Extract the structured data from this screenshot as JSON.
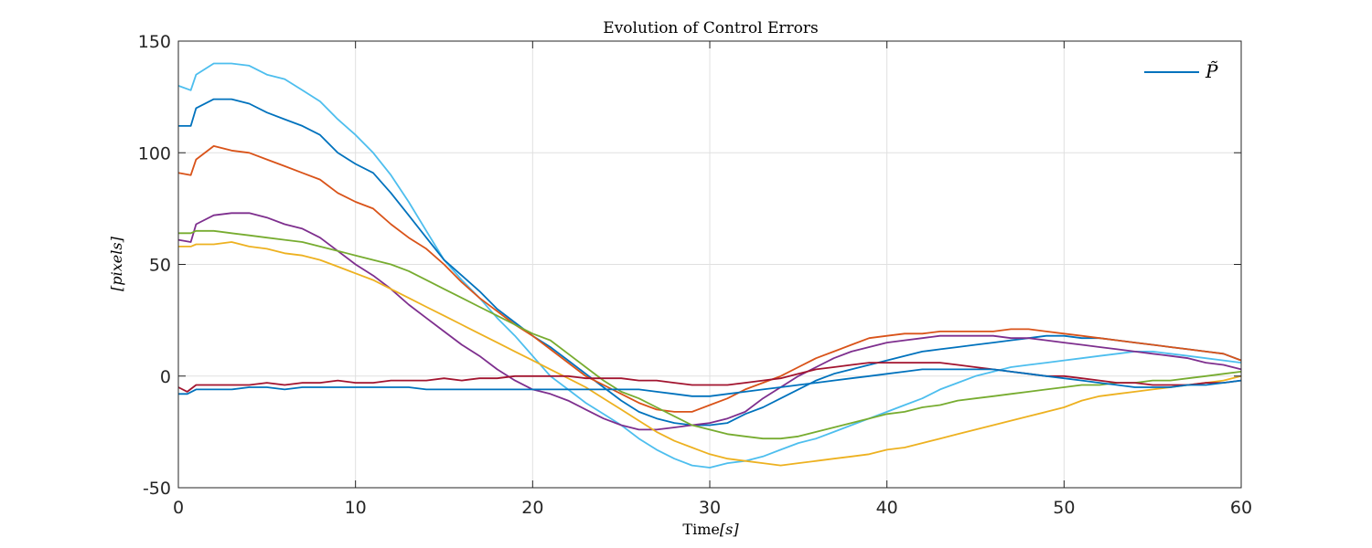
{
  "chart_data": {
    "type": "line",
    "title": "Evolution of Control Errors",
    "xlabel": "Time[s]",
    "xlabel_main": "Time",
    "xlabel_unit": "[s]",
    "ylabel": "[pixels]",
    "xlim": [
      0,
      60
    ],
    "ylim": [
      -50,
      150
    ],
    "xticks": [
      0,
      10,
      20,
      30,
      40,
      50,
      60
    ],
    "yticks": [
      -50,
      0,
      50,
      100,
      150
    ],
    "grid": true,
    "legend": {
      "position": "top-right",
      "entries": [
        "P̃"
      ]
    },
    "colors": [
      "#0072BD",
      "#D95319",
      "#EDB120",
      "#7E2F8E",
      "#77AC30",
      "#4DBEEE",
      "#A2142F"
    ],
    "series": [
      {
        "color": "#4DBEEE",
        "x": [
          0,
          0.7,
          1,
          2,
          3,
          4,
          5,
          6,
          7,
          8,
          9,
          10,
          11,
          12,
          13,
          14,
          15,
          16,
          17,
          18,
          19,
          20,
          21,
          22,
          23,
          24,
          25,
          26,
          27,
          28,
          29,
          30,
          31,
          32,
          33,
          34,
          35,
          36,
          37,
          38,
          39,
          40,
          41,
          42,
          43,
          44,
          45,
          46,
          47,
          48,
          49,
          50,
          51,
          52,
          53,
          54,
          55,
          56,
          57,
          58,
          59,
          60
        ],
        "y": [
          130,
          128,
          135,
          140,
          140,
          139,
          135,
          133,
          128,
          123,
          115,
          108,
          100,
          90,
          78,
          65,
          52,
          43,
          35,
          26,
          18,
          9,
          0,
          -6,
          -12,
          -17,
          -22,
          -28,
          -33,
          -37,
          -40,
          -41,
          -39,
          -38,
          -36,
          -33,
          -30,
          -28,
          -25,
          -22,
          -19,
          -16,
          -13,
          -10,
          -6,
          -3,
          0,
          2,
          4,
          5,
          6,
          7,
          8,
          9,
          10,
          11,
          11,
          10,
          9,
          8,
          7,
          6
        ]
      },
      {
        "color": "#0072BD",
        "x": [
          0,
          0.7,
          1,
          2,
          3,
          4,
          5,
          6,
          7,
          8,
          9,
          10,
          11,
          12,
          13,
          14,
          15,
          16,
          17,
          18,
          19,
          20,
          21,
          22,
          23,
          24,
          25,
          26,
          27,
          28,
          29,
          30,
          31,
          32,
          33,
          34,
          35,
          36,
          37,
          38,
          39,
          40,
          41,
          42,
          43,
          44,
          45,
          46,
          47,
          48,
          49,
          50,
          51,
          52,
          53,
          54,
          55,
          56,
          57,
          58,
          59,
          60
        ],
        "y": [
          112,
          112,
          120,
          124,
          124,
          122,
          118,
          115,
          112,
          108,
          100,
          95,
          91,
          82,
          72,
          62,
          52,
          45,
          38,
          30,
          24,
          18,
          13,
          7,
          1,
          -5,
          -11,
          -16,
          -19,
          -21,
          -22,
          -22,
          -21,
          -17,
          -14,
          -10,
          -6,
          -2,
          1,
          3,
          5,
          7,
          9,
          11,
          12,
          13,
          14,
          15,
          16,
          17,
          18,
          18,
          17,
          17,
          16,
          15,
          14,
          13,
          12,
          11,
          10,
          7
        ]
      },
      {
        "color": "#D95319",
        "x": [
          0,
          0.7,
          1,
          2,
          3,
          4,
          5,
          6,
          7,
          8,
          9,
          10,
          11,
          12,
          13,
          14,
          15,
          16,
          17,
          18,
          19,
          20,
          21,
          22,
          23,
          24,
          25,
          26,
          27,
          28,
          29,
          30,
          31,
          32,
          33,
          34,
          35,
          36,
          37,
          38,
          39,
          40,
          41,
          42,
          43,
          44,
          45,
          46,
          47,
          48,
          49,
          50,
          51,
          52,
          53,
          54,
          55,
          56,
          57,
          58,
          59,
          60
        ],
        "y": [
          91,
          90,
          97,
          103,
          101,
          100,
          97,
          94,
          91,
          88,
          82,
          78,
          75,
          68,
          62,
          57,
          50,
          42,
          35,
          29,
          23,
          18,
          12,
          6,
          0,
          -4,
          -8,
          -12,
          -15,
          -16,
          -16,
          -13,
          -10,
          -6,
          -3,
          0,
          4,
          8,
          11,
          14,
          17,
          18,
          19,
          19,
          20,
          20,
          20,
          20,
          21,
          21,
          20,
          19,
          18,
          17,
          16,
          15,
          14,
          13,
          12,
          11,
          10,
          7
        ]
      },
      {
        "color": "#7E2F8E",
        "x": [
          0,
          0.7,
          1,
          2,
          3,
          4,
          5,
          6,
          7,
          8,
          9,
          10,
          11,
          12,
          13,
          14,
          15,
          16,
          17,
          18,
          19,
          20,
          21,
          22,
          23,
          24,
          25,
          26,
          27,
          28,
          29,
          30,
          31,
          32,
          33,
          34,
          35,
          36,
          37,
          38,
          39,
          40,
          41,
          42,
          43,
          44,
          45,
          46,
          47,
          48,
          49,
          50,
          51,
          52,
          53,
          54,
          55,
          56,
          57,
          58,
          59,
          60
        ],
        "y": [
          61,
          60,
          68,
          72,
          73,
          73,
          71,
          68,
          66,
          62,
          56,
          50,
          45,
          39,
          32,
          26,
          20,
          14,
          9,
          3,
          -2,
          -6,
          -8,
          -11,
          -15,
          -19,
          -22,
          -24,
          -24,
          -23,
          -22,
          -21,
          -19,
          -16,
          -10,
          -5,
          0,
          4,
          8,
          11,
          13,
          15,
          16,
          17,
          18,
          18,
          18,
          18,
          17,
          17,
          16,
          15,
          14,
          13,
          12,
          11,
          10,
          9,
          8,
          6,
          5,
          3
        ]
      },
      {
        "color": "#77AC30",
        "x": [
          0,
          0.7,
          1,
          2,
          3,
          4,
          5,
          6,
          7,
          8,
          9,
          10,
          11,
          12,
          13,
          14,
          15,
          16,
          17,
          18,
          19,
          20,
          21,
          22,
          23,
          24,
          25,
          26,
          27,
          28,
          29,
          30,
          31,
          32,
          33,
          34,
          35,
          36,
          37,
          38,
          39,
          40,
          41,
          42,
          43,
          44,
          45,
          46,
          47,
          48,
          49,
          50,
          51,
          52,
          53,
          54,
          55,
          56,
          57,
          58,
          59,
          60
        ],
        "y": [
          64,
          64,
          65,
          65,
          64,
          63,
          62,
          61,
          60,
          58,
          56,
          54,
          52,
          50,
          47,
          43,
          39,
          35,
          31,
          27,
          23,
          19,
          16,
          10,
          4,
          -2,
          -7,
          -10,
          -14,
          -18,
          -22,
          -24,
          -26,
          -27,
          -28,
          -28,
          -27,
          -25,
          -23,
          -21,
          -19,
          -17,
          -16,
          -14,
          -13,
          -11,
          -10,
          -9,
          -8,
          -7,
          -6,
          -5,
          -4,
          -4,
          -3,
          -3,
          -2,
          -2,
          -1,
          0,
          1,
          2
        ]
      },
      {
        "color": "#EDB120",
        "x": [
          0,
          0.7,
          1,
          2,
          3,
          4,
          5,
          6,
          7,
          8,
          9,
          10,
          11,
          12,
          13,
          14,
          15,
          16,
          17,
          18,
          19,
          20,
          21,
          22,
          23,
          24,
          25,
          26,
          27,
          28,
          29,
          30,
          31,
          32,
          33,
          34,
          35,
          36,
          37,
          38,
          39,
          40,
          41,
          42,
          43,
          44,
          45,
          46,
          47,
          48,
          49,
          50,
          51,
          52,
          53,
          54,
          55,
          56,
          57,
          58,
          59,
          60
        ],
        "y": [
          58,
          58,
          59,
          59,
          60,
          58,
          57,
          55,
          54,
          52,
          49,
          46,
          43,
          39,
          35,
          31,
          27,
          23,
          19,
          15,
          11,
          7,
          3,
          -1,
          -5,
          -10,
          -15,
          -20,
          -25,
          -29,
          -32,
          -35,
          -37,
          -38,
          -39,
          -40,
          -39,
          -38,
          -37,
          -36,
          -35,
          -33,
          -32,
          -30,
          -28,
          -26,
          -24,
          -22,
          -20,
          -18,
          -16,
          -14,
          -11,
          -9,
          -8,
          -7,
          -6,
          -5,
          -4,
          -3,
          -2,
          0
        ]
      },
      {
        "color": "#A2142F",
        "x": [
          0,
          0.5,
          1,
          2,
          3,
          4,
          5,
          6,
          7,
          8,
          9,
          10,
          11,
          12,
          13,
          14,
          15,
          16,
          17,
          18,
          19,
          20,
          21,
          22,
          23,
          24,
          25,
          26,
          27,
          28,
          29,
          30,
          31,
          32,
          33,
          34,
          35,
          36,
          37,
          38,
          39,
          40,
          41,
          42,
          43,
          44,
          45,
          46,
          47,
          48,
          49,
          50,
          51,
          52,
          53,
          54,
          55,
          56,
          57,
          58,
          59,
          60
        ],
        "y": [
          -5,
          -7,
          -4,
          -4,
          -4,
          -4,
          -3,
          -4,
          -3,
          -3,
          -2,
          -3,
          -3,
          -2,
          -2,
          -2,
          -1,
          -2,
          -1,
          -1,
          0,
          0,
          0,
          0,
          -1,
          -1,
          -1,
          -2,
          -2,
          -3,
          -4,
          -4,
          -4,
          -3,
          -2,
          -1,
          1,
          3,
          4,
          5,
          6,
          6,
          6,
          6,
          6,
          5,
          4,
          3,
          2,
          1,
          0,
          0,
          -1,
          -2,
          -3,
          -3,
          -4,
          -4,
          -4,
          -3,
          -3,
          -2
        ]
      },
      {
        "color": "#0072BD",
        "x": [
          0,
          0.5,
          1,
          2,
          3,
          4,
          5,
          6,
          7,
          8,
          9,
          10,
          11,
          12,
          13,
          14,
          15,
          16,
          17,
          18,
          19,
          20,
          21,
          22,
          23,
          24,
          25,
          26,
          27,
          28,
          29,
          30,
          31,
          32,
          33,
          34,
          35,
          36,
          37,
          38,
          39,
          40,
          41,
          42,
          43,
          44,
          45,
          46,
          47,
          48,
          49,
          50,
          51,
          52,
          53,
          54,
          55,
          56,
          57,
          58,
          59,
          60
        ],
        "y": [
          -8,
          -8,
          -6,
          -6,
          -6,
          -5,
          -5,
          -6,
          -5,
          -5,
          -5,
          -5,
          -5,
          -5,
          -5,
          -6,
          -6,
          -6,
          -6,
          -6,
          -6,
          -6,
          -6,
          -6,
          -6,
          -6,
          -6,
          -6,
          -7,
          -8,
          -9,
          -9,
          -8,
          -7,
          -6,
          -5,
          -4,
          -3,
          -2,
          -1,
          0,
          1,
          2,
          3,
          3,
          3,
          3,
          3,
          2,
          1,
          0,
          -1,
          -2,
          -3,
          -4,
          -5,
          -5,
          -5,
          -4,
          -4,
          -3,
          -2
        ]
      }
    ]
  }
}
